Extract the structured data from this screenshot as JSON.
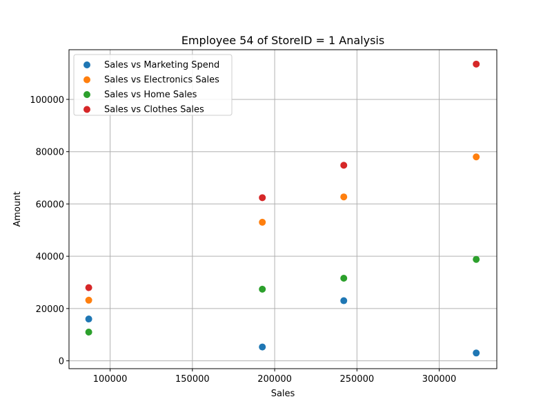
{
  "chart_data": {
    "type": "scatter",
    "title": "Employee 54 of StoreID = 1 Analysis",
    "xlabel": "Sales",
    "ylabel": "Amount",
    "xlim": [
      75000,
      335000
    ],
    "ylim": [
      -3000,
      119000
    ],
    "x_ticks": [
      100000,
      150000,
      200000,
      250000,
      300000
    ],
    "y_ticks": [
      0,
      20000,
      40000,
      60000,
      80000,
      100000
    ],
    "grid": true,
    "legend_position": "top-left",
    "x": [
      87000,
      192500,
      242000,
      322500
    ],
    "series": [
      {
        "name": "Sales vs Marketing Spend",
        "color": "#1f77b4",
        "values": [
          16000,
          5300,
          23000,
          3000
        ]
      },
      {
        "name": "Sales vs Electronics Sales",
        "color": "#ff7f0e",
        "values": [
          23200,
          53000,
          62700,
          78000
        ]
      },
      {
        "name": "Sales vs Home Sales",
        "color": "#2ca02c",
        "values": [
          11000,
          27400,
          31600,
          38800
        ]
      },
      {
        "name": "Sales vs Clothes Sales",
        "color": "#d62728",
        "values": [
          28000,
          62400,
          74800,
          113500
        ]
      }
    ]
  }
}
